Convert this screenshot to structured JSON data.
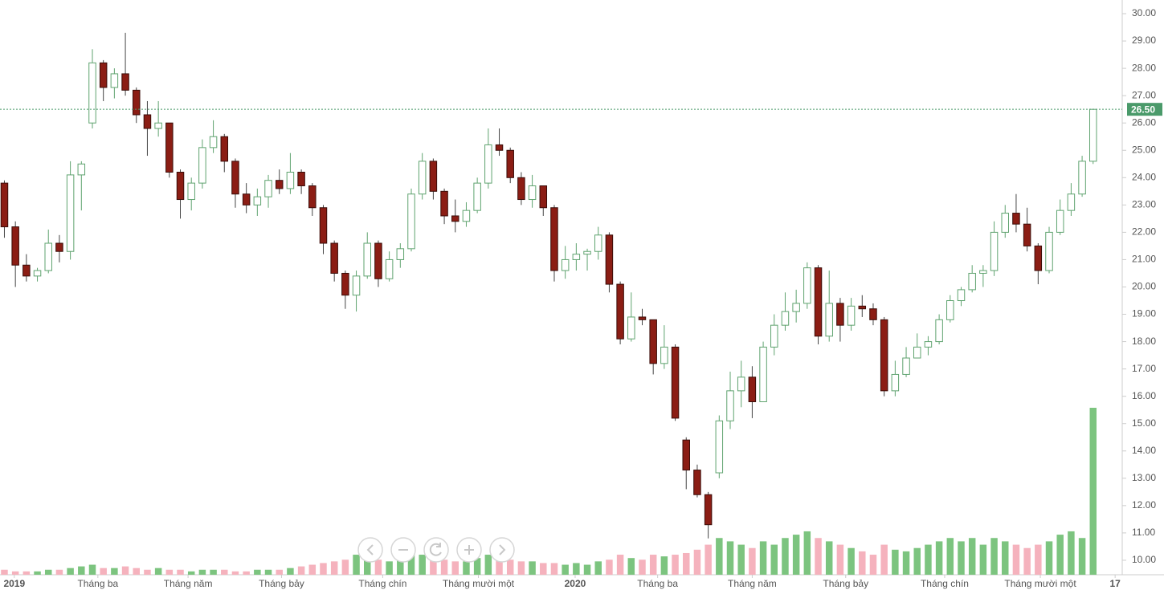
{
  "chart_data": {
    "type": "candlestick",
    "open": [
      23.8,
      22.2,
      20.8,
      20.4,
      20.6,
      21.6,
      21.3,
      24.1,
      26.0,
      28.2,
      27.3,
      27.8,
      27.2,
      26.3,
      25.8,
      26.0,
      24.2,
      23.2,
      23.8,
      25.1,
      25.5,
      24.6,
      23.4,
      23.0,
      23.3,
      23.9,
      23.6,
      24.2,
      23.7,
      22.9,
      21.6,
      20.5,
      19.7,
      20.4,
      21.6,
      20.3,
      21.0,
      21.4,
      23.4,
      24.6,
      23.5,
      22.6,
      22.4,
      22.8,
      23.8,
      25.2,
      25.0,
      24.0,
      23.2,
      23.7,
      22.9,
      20.6,
      21.0,
      21.2,
      21.3,
      21.9,
      20.1,
      18.1,
      18.9,
      18.8,
      17.2,
      17.8,
      14.4,
      13.3,
      12.4,
      13.2,
      15.1,
      16.2,
      16.7,
      15.8,
      17.8,
      18.6,
      19.1,
      19.4,
      20.7,
      18.2,
      19.4,
      18.6,
      19.3,
      19.2,
      18.8,
      16.2,
      16.8,
      17.4,
      17.8,
      18.0,
      18.8,
      19.5,
      19.9,
      20.5,
      20.6,
      22.0,
      22.7,
      22.3,
      21.5,
      20.6,
      22.0,
      22.8,
      23.4,
      24.6
    ],
    "high": [
      23.9,
      22.4,
      21.2,
      20.7,
      22.1,
      21.9,
      24.6,
      24.6,
      28.7,
      28.3,
      28.0,
      29.3,
      27.3,
      26.8,
      26.8,
      26.0,
      24.3,
      24.0,
      25.4,
      26.1,
      25.6,
      24.7,
      23.8,
      23.6,
      24.1,
      24.3,
      24.9,
      24.3,
      23.8,
      23.0,
      21.7,
      20.6,
      20.6,
      22.0,
      21.7,
      21.3,
      21.6,
      23.6,
      24.9,
      24.7,
      23.6,
      23.2,
      23.1,
      24.0,
      25.8,
      25.8,
      25.1,
      24.2,
      24.1,
      23.7,
      23.0,
      21.5,
      21.6,
      21.4,
      22.2,
      22.0,
      20.2,
      19.8,
      19.2,
      18.8,
      18.6,
      17.9,
      14.5,
      13.5,
      12.5,
      15.3,
      16.9,
      17.3,
      17.1,
      18.0,
      19.0,
      19.8,
      19.9,
      20.9,
      20.8,
      20.6,
      19.6,
      19.6,
      19.7,
      19.4,
      18.9,
      17.3,
      17.8,
      18.3,
      18.2,
      19.0,
      19.7,
      20.0,
      20.8,
      20.8,
      22.4,
      23.0,
      23.4,
      22.9,
      21.6,
      22.2,
      23.2,
      23.8,
      24.8,
      26.5
    ],
    "low": [
      21.8,
      20.0,
      20.2,
      20.2,
      20.5,
      20.9,
      21.0,
      22.8,
      25.8,
      26.8,
      26.9,
      27.0,
      26.0,
      24.8,
      25.5,
      24.0,
      22.5,
      22.8,
      23.6,
      24.9,
      24.2,
      22.9,
      22.7,
      22.6,
      22.9,
      23.4,
      23.4,
      23.4,
      22.6,
      21.2,
      20.2,
      19.2,
      19.1,
      20.3,
      20.0,
      20.2,
      20.7,
      21.3,
      23.2,
      23.2,
      22.3,
      22.0,
      22.2,
      22.7,
      23.6,
      24.8,
      23.8,
      23.0,
      22.9,
      22.6,
      20.2,
      20.3,
      20.6,
      20.6,
      21.0,
      19.8,
      17.9,
      18.0,
      18.6,
      16.8,
      17.0,
      15.1,
      12.6,
      12.3,
      10.8,
      13.0,
      14.8,
      15.6,
      15.2,
      15.8,
      17.5,
      18.4,
      18.7,
      19.2,
      17.9,
      18.0,
      18.0,
      18.4,
      18.9,
      18.6,
      16.0,
      16.0,
      16.7,
      17.4,
      17.5,
      17.9,
      18.7,
      19.3,
      19.8,
      20.0,
      20.4,
      21.8,
      22.0,
      21.3,
      20.1,
      20.5,
      21.9,
      22.6,
      23.3,
      24.5
    ],
    "close": [
      22.2,
      20.8,
      20.4,
      20.6,
      21.6,
      21.3,
      24.1,
      24.5,
      28.2,
      27.3,
      27.8,
      27.2,
      26.3,
      25.8,
      26.0,
      24.2,
      23.2,
      23.8,
      25.1,
      25.5,
      24.6,
      23.4,
      23.0,
      23.3,
      23.9,
      23.6,
      24.2,
      23.7,
      22.9,
      21.6,
      20.5,
      19.7,
      20.4,
      21.6,
      20.3,
      21.0,
      21.4,
      23.4,
      24.6,
      23.5,
      22.6,
      22.4,
      22.8,
      23.8,
      25.2,
      25.0,
      24.0,
      23.2,
      23.7,
      22.9,
      20.6,
      21.0,
      21.2,
      21.3,
      21.9,
      20.1,
      18.1,
      18.9,
      18.8,
      17.2,
      17.8,
      15.2,
      13.3,
      12.4,
      11.3,
      15.1,
      16.2,
      16.7,
      15.8,
      17.8,
      18.6,
      19.1,
      19.4,
      20.7,
      18.2,
      19.4,
      18.6,
      19.3,
      19.2,
      18.8,
      16.2,
      16.8,
      17.4,
      17.8,
      18.0,
      18.8,
      19.5,
      19.9,
      20.5,
      20.6,
      22.0,
      22.7,
      22.3,
      21.5,
      20.6,
      22.0,
      22.8,
      23.4,
      24.6,
      26.5
    ],
    "volume": [
      3,
      2,
      2,
      2,
      3,
      3,
      4,
      5,
      6,
      4,
      4,
      5,
      4,
      3,
      4,
      3,
      3,
      2,
      3,
      3,
      3,
      2,
      2,
      3,
      3,
      3,
      4,
      5,
      6,
      7,
      8,
      9,
      12,
      10,
      9,
      8,
      10,
      12,
      12,
      10,
      9,
      8,
      8,
      10,
      12,
      10,
      9,
      8,
      8,
      7,
      7,
      6,
      7,
      6,
      8,
      9,
      12,
      10,
      9,
      12,
      11,
      12,
      13,
      15,
      18,
      22,
      20,
      18,
      16,
      20,
      18,
      22,
      24,
      26,
      22,
      20,
      18,
      16,
      14,
      12,
      18,
      15,
      14,
      16,
      18,
      20,
      22,
      20,
      22,
      18,
      22,
      20,
      18,
      16,
      18,
      20,
      24,
      26,
      22,
      100
    ],
    "up_color": "#5fa36f",
    "down_color": "#8b1d14",
    "volume_up_color": "#7cc47f",
    "volume_down_color": "#f5b2bd",
    "xlim": [
      -0.4,
      101.5
    ],
    "xticks": [
      {
        "value": 0.9,
        "label": "2019"
      },
      {
        "value": 8.5,
        "label": "Tháng ba"
      },
      {
        "value": 16.7,
        "label": "Tháng năm"
      },
      {
        "value": 25.2,
        "label": "Tháng bảy"
      },
      {
        "value": 34.4,
        "label": "Tháng chín"
      },
      {
        "value": 43.1,
        "label": "Tháng mười một"
      },
      {
        "value": 51.9,
        "label": "2020"
      },
      {
        "value": 59.4,
        "label": "Tháng ba"
      },
      {
        "value": 68.0,
        "label": "Tháng năm"
      },
      {
        "value": 76.5,
        "label": "Tháng bảy"
      },
      {
        "value": 85.5,
        "label": "Tháng chín"
      },
      {
        "value": 94.2,
        "label": "Tháng mười một"
      },
      {
        "value": 101.0,
        "label": "17"
      }
    ],
    "ylim": [
      9.47,
      30.5
    ],
    "yticks": [
      {
        "value": 10,
        "label": "10.00"
      },
      {
        "value": 11,
        "label": "11.00"
      },
      {
        "value": 12,
        "label": "12.00"
      },
      {
        "value": 13,
        "label": "13.00"
      },
      {
        "value": 14,
        "label": "14.00"
      },
      {
        "value": 15,
        "label": "15.00"
      },
      {
        "value": 16,
        "label": "16.00"
      },
      {
        "value": 17,
        "label": "17.00"
      },
      {
        "value": 18,
        "label": "18.00"
      },
      {
        "value": 19,
        "label": "19.00"
      },
      {
        "value": 20,
        "label": "20.00"
      },
      {
        "value": 21,
        "label": "21.00"
      },
      {
        "value": 22,
        "label": "22.00"
      },
      {
        "value": 23,
        "label": "23.00"
      },
      {
        "value": 24,
        "label": "24.00"
      },
      {
        "value": 25,
        "label": "25.00"
      },
      {
        "value": 26,
        "label": "26.00"
      },
      {
        "value": 27,
        "label": "27.00"
      },
      {
        "value": 28,
        "label": "28.00"
      },
      {
        "value": 29,
        "label": "29.00"
      },
      {
        "value": 30,
        "label": "30.00"
      }
    ],
    "last_price": {
      "value": 26.5,
      "label": "26.50"
    },
    "last_price_color": "#4a9a6a"
  }
}
